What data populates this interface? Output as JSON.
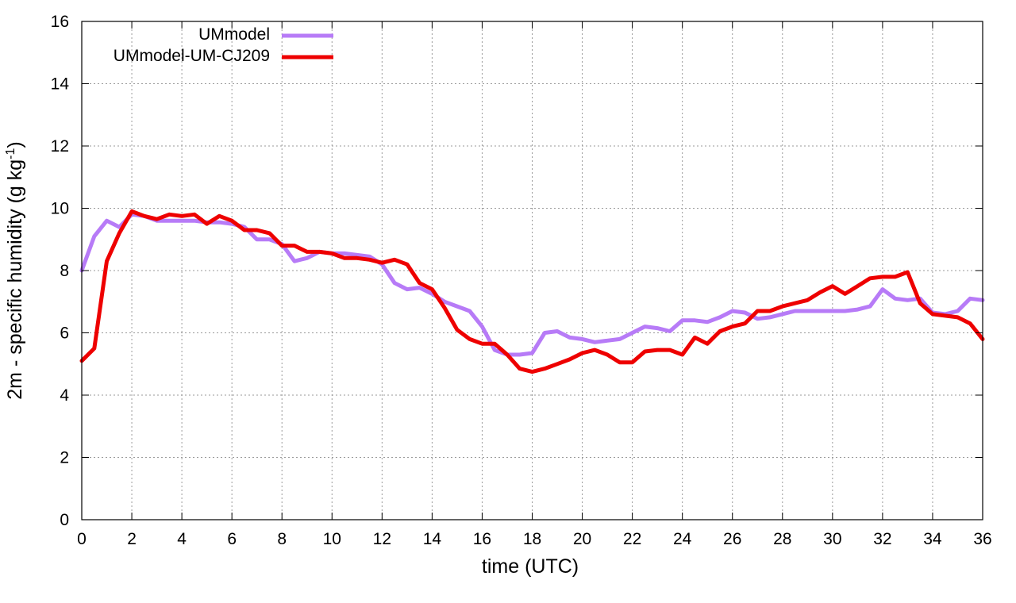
{
  "chart_data": {
    "type": "line",
    "title": "",
    "xlabel": "time (UTC)",
    "ylabel": {
      "base": "2m - specific humidity (g kg",
      "sup": "-1",
      "end": ")"
    },
    "xlim": [
      0,
      36
    ],
    "ylim": [
      0,
      16
    ],
    "xticks": [
      0,
      2,
      4,
      6,
      8,
      10,
      12,
      14,
      16,
      18,
      20,
      22,
      24,
      26,
      28,
      30,
      32,
      34,
      36
    ],
    "yticks": [
      0,
      2,
      4,
      6,
      8,
      10,
      12,
      14,
      16
    ],
    "grid": true,
    "legend_position": "top-left",
    "series": [
      {
        "name": "UMmodel",
        "color": "#b77bf7",
        "x": [
          0,
          0.5,
          1,
          1.5,
          2,
          2.5,
          3,
          3.5,
          4,
          4.5,
          5,
          5.5,
          6,
          6.5,
          7,
          7.5,
          8,
          8.5,
          9,
          9.5,
          10,
          10.5,
          11,
          11.5,
          12,
          12.5,
          13,
          13.5,
          14,
          14.5,
          15,
          15.5,
          16,
          16.5,
          17,
          17.5,
          18,
          18.5,
          19,
          19.5,
          20,
          20.5,
          21,
          21.5,
          22,
          22.5,
          23,
          23.5,
          24,
          24.5,
          25,
          25.5,
          26,
          26.5,
          27,
          27.5,
          28,
          28.5,
          29,
          29.5,
          30,
          30.5,
          31,
          31.5,
          32,
          32.5,
          33,
          33.5,
          34,
          34.5,
          35,
          35.5,
          36
        ],
        "values": [
          8.0,
          9.1,
          9.6,
          9.4,
          9.8,
          9.75,
          9.6,
          9.6,
          9.6,
          9.6,
          9.55,
          9.55,
          9.5,
          9.4,
          9.0,
          9.0,
          8.85,
          8.3,
          8.4,
          8.6,
          8.55,
          8.55,
          8.5,
          8.45,
          8.2,
          7.6,
          7.4,
          7.45,
          7.25,
          7.0,
          6.85,
          6.7,
          6.2,
          5.45,
          5.3,
          5.3,
          5.35,
          6.0,
          6.05,
          5.85,
          5.8,
          5.7,
          5.75,
          5.8,
          6.0,
          6.2,
          6.15,
          6.05,
          6.4,
          6.4,
          6.35,
          6.5,
          6.7,
          6.65,
          6.45,
          6.5,
          6.6,
          6.7,
          6.7,
          6.7,
          6.7,
          6.7,
          6.75,
          6.85,
          7.4,
          7.1,
          7.05,
          7.1,
          6.65,
          6.6,
          6.7,
          7.1,
          7.05
        ]
      },
      {
        "name": "UMmodel-UM-CJ209",
        "color": "#ee0000",
        "x": [
          0,
          0.5,
          1,
          1.5,
          2,
          2.5,
          3,
          3.5,
          4,
          4.5,
          5,
          5.5,
          6,
          6.5,
          7,
          7.5,
          8,
          8.5,
          9,
          9.5,
          10,
          10.5,
          11,
          11.5,
          12,
          12.5,
          13,
          13.5,
          14,
          14.5,
          15,
          15.5,
          16,
          16.5,
          17,
          17.5,
          18,
          18.5,
          19,
          19.5,
          20,
          20.5,
          21,
          21.5,
          22,
          22.5,
          23,
          23.5,
          24,
          24.5,
          25,
          25.5,
          26,
          26.5,
          27,
          27.5,
          28,
          28.5,
          29,
          29.5,
          30,
          30.5,
          31,
          31.5,
          32,
          32.5,
          33,
          33.5,
          34,
          34.5,
          35,
          35.5,
          36
        ],
        "values": [
          5.1,
          5.5,
          8.3,
          9.2,
          9.9,
          9.75,
          9.65,
          9.8,
          9.75,
          9.8,
          9.5,
          9.75,
          9.6,
          9.3,
          9.3,
          9.2,
          8.8,
          8.8,
          8.6,
          8.6,
          8.55,
          8.4,
          8.4,
          8.35,
          8.25,
          8.35,
          8.2,
          7.6,
          7.4,
          6.8,
          6.1,
          5.8,
          5.65,
          5.65,
          5.3,
          4.85,
          4.75,
          4.85,
          5.0,
          5.15,
          5.35,
          5.45,
          5.3,
          5.05,
          5.05,
          5.4,
          5.45,
          5.45,
          5.3,
          5.85,
          5.65,
          6.05,
          6.2,
          6.3,
          6.7,
          6.7,
          6.85,
          6.95,
          7.05,
          7.3,
          7.5,
          7.25,
          7.5,
          7.75,
          7.8,
          7.8,
          7.95,
          6.95,
          6.6,
          6.55,
          6.5,
          6.3,
          5.8
        ]
      }
    ]
  }
}
